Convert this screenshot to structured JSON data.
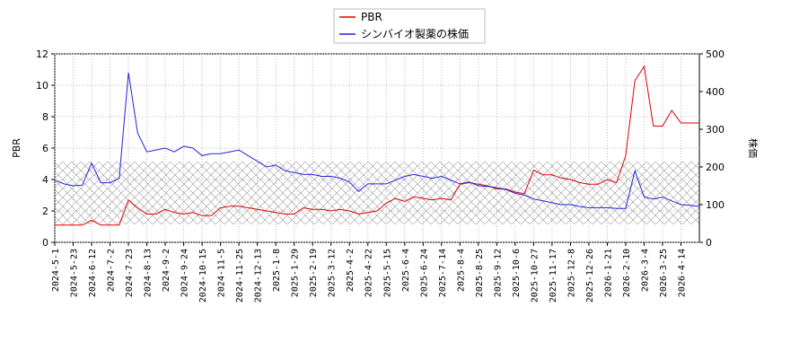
{
  "chart_data": {
    "type": "line",
    "ylabel": "PBR",
    "y2label": "株価",
    "categories": [
      "2024-5-1",
      null,
      "2024-5-23",
      null,
      "2024-6-12",
      null,
      "2024-7-2",
      null,
      "2024-7-23",
      null,
      "2024-8-13",
      null,
      "2024-9-2",
      null,
      "2024-9-24",
      null,
      "2024-10-15",
      null,
      "2024-11-5",
      null,
      "2024-11-25",
      null,
      "2024-12-13",
      null,
      "2025-1-8",
      null,
      "2025-1-29",
      null,
      "2025-2-19",
      null,
      "2025-3-12",
      null,
      "2025-4-2",
      null,
      "2025-4-22",
      null,
      "2025-5-15",
      null,
      "2025-6-4",
      null,
      "2025-6-24",
      null,
      "2025-7-14",
      null,
      "2025-8-4",
      null,
      "2025-8-25",
      null,
      "2025-9-12",
      null,
      "2025-10-6",
      null,
      "2025-10-27",
      null,
      "2025-11-17",
      null,
      "2025-12-8",
      null,
      "2025-12-26",
      null,
      "2026-1-21",
      null,
      "2026-2-10",
      null,
      "2026-3-4",
      null,
      "2026-3-25",
      null,
      "2026-4-14",
      null,
      null
    ],
    "series": [
      {
        "name": "PBR",
        "color": "#dd0000",
        "axis": "y",
        "values": [
          1.1,
          1.1,
          1.1,
          1.1,
          1.4,
          1.1,
          1.1,
          1.1,
          2.7,
          2.2,
          1.8,
          1.8,
          2.1,
          1.9,
          1.8,
          1.9,
          1.7,
          1.7,
          2.2,
          2.3,
          2.3,
          2.2,
          2.1,
          2.0,
          1.9,
          1.8,
          1.8,
          2.2,
          2.1,
          2.1,
          2.0,
          2.1,
          2.0,
          1.8,
          1.9,
          2.0,
          2.5,
          2.8,
          2.6,
          2.9,
          2.8,
          2.7,
          2.8,
          2.7,
          3.7,
          3.8,
          3.7,
          3.6,
          3.4,
          3.4,
          3.2,
          3.1,
          4.6,
          4.3,
          4.3,
          4.1,
          4.0,
          3.8,
          3.7,
          3.7,
          4.0,
          3.8,
          5.5,
          10.3,
          11.2,
          7.4,
          7.4,
          8.4,
          7.6,
          7.6,
          7.6
        ]
      },
      {
        "name": "シンバイオ製薬の株価",
        "color": "#2222dd",
        "axis": "y2",
        "values": [
          165,
          155,
          150,
          152,
          210,
          158,
          158,
          170,
          450,
          290,
          240,
          245,
          250,
          240,
          255,
          250,
          230,
          235,
          235,
          240,
          245,
          230,
          215,
          200,
          205,
          190,
          185,
          180,
          180,
          175,
          175,
          170,
          160,
          135,
          155,
          155,
          155,
          165,
          175,
          180,
          175,
          170,
          175,
          165,
          155,
          160,
          150,
          148,
          145,
          140,
          130,
          125,
          115,
          110,
          105,
          100,
          100,
          95,
          92,
          92,
          92,
          90,
          90,
          190,
          120,
          115,
          120,
          110,
          100,
          98,
          95
        ]
      }
    ],
    "ylim": [
      0,
      12
    ],
    "yticks": [
      0,
      2,
      4,
      6,
      8,
      10,
      12
    ],
    "y2lim": [
      0,
      500
    ],
    "y2ticks": [
      0,
      100,
      200,
      300,
      400,
      500
    ],
    "grid": true,
    "legend": "top"
  }
}
